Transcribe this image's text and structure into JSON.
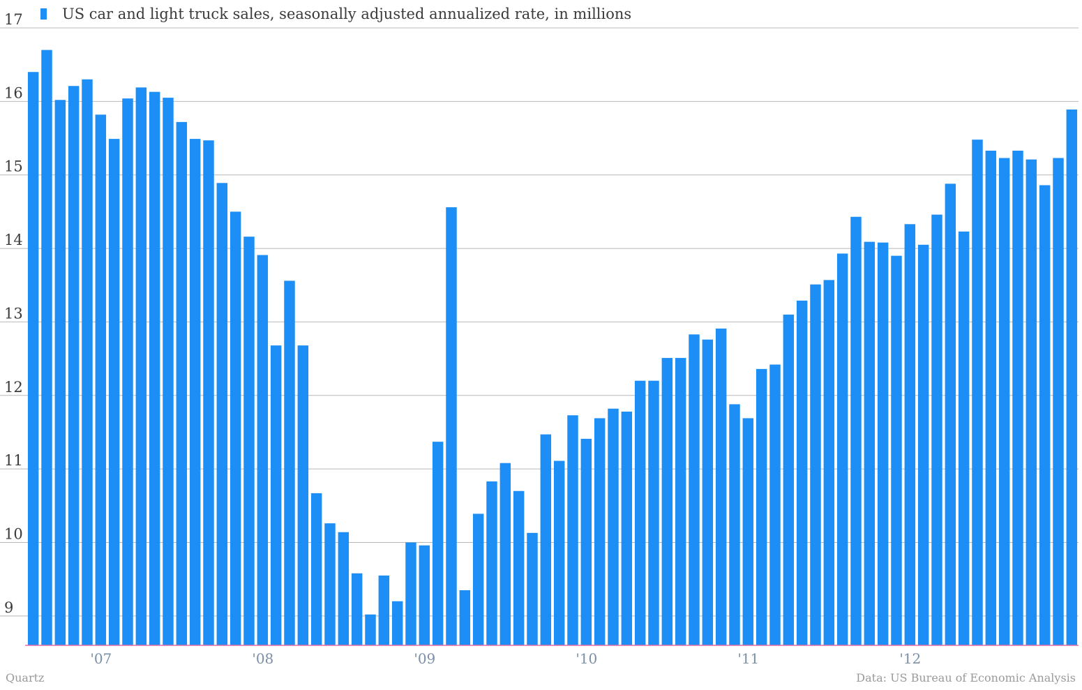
{
  "colors": {
    "bar": "#1c8ef5",
    "grid": "#b8b8b8",
    "baseline": "#e86aa6",
    "text": "#3a3a3a",
    "x_tick_text": "#7b8fa6",
    "credit_text": "#9a9a9a"
  },
  "credits": {
    "source_left": "Quartz",
    "source_right": "Data: US Bureau of Economic Analysis"
  },
  "chart_data": {
    "type": "bar",
    "title": "",
    "xlabel": "",
    "ylabel": "",
    "ylim": [
      8.6,
      17
    ],
    "y_ticks": [
      9,
      10,
      11,
      12,
      13,
      14,
      15,
      16,
      17
    ],
    "grid": true,
    "legend": {
      "placement": "top-left"
    },
    "x_tick_labels": [
      {
        "label": "'07",
        "index": 5
      },
      {
        "label": "'08",
        "index": 17
      },
      {
        "label": "'09",
        "index": 29
      },
      {
        "label": "'10",
        "index": 41
      },
      {
        "label": "'11",
        "index": 53
      },
      {
        "label": "'12",
        "index": 65
      }
    ],
    "series": [
      {
        "name": "US car and light truck sales, seasonally adjusted annualized rate, in millions",
        "values": [
          16.4,
          16.7,
          16.02,
          16.21,
          16.3,
          15.82,
          15.49,
          16.04,
          16.19,
          16.13,
          16.05,
          15.72,
          15.49,
          15.47,
          14.89,
          14.5,
          14.16,
          13.91,
          12.68,
          13.56,
          12.68,
          10.67,
          10.26,
          10.14,
          9.58,
          9.02,
          9.55,
          9.2,
          10.0,
          9.96,
          11.37,
          14.56,
          9.35,
          10.39,
          10.83,
          11.08,
          10.7,
          10.13,
          11.47,
          11.11,
          11.73,
          11.41,
          11.69,
          11.82,
          11.78,
          12.2,
          12.2,
          12.51,
          12.51,
          12.83,
          12.76,
          12.91,
          11.88,
          11.69,
          12.36,
          12.42,
          13.1,
          13.29,
          13.51,
          13.57,
          13.93,
          14.43,
          14.09,
          14.08,
          13.9,
          14.33,
          14.05,
          14.46,
          14.88,
          14.23,
          15.48,
          15.33,
          15.23,
          15.33,
          15.21,
          14.86,
          15.23,
          15.89
        ]
      }
    ]
  }
}
